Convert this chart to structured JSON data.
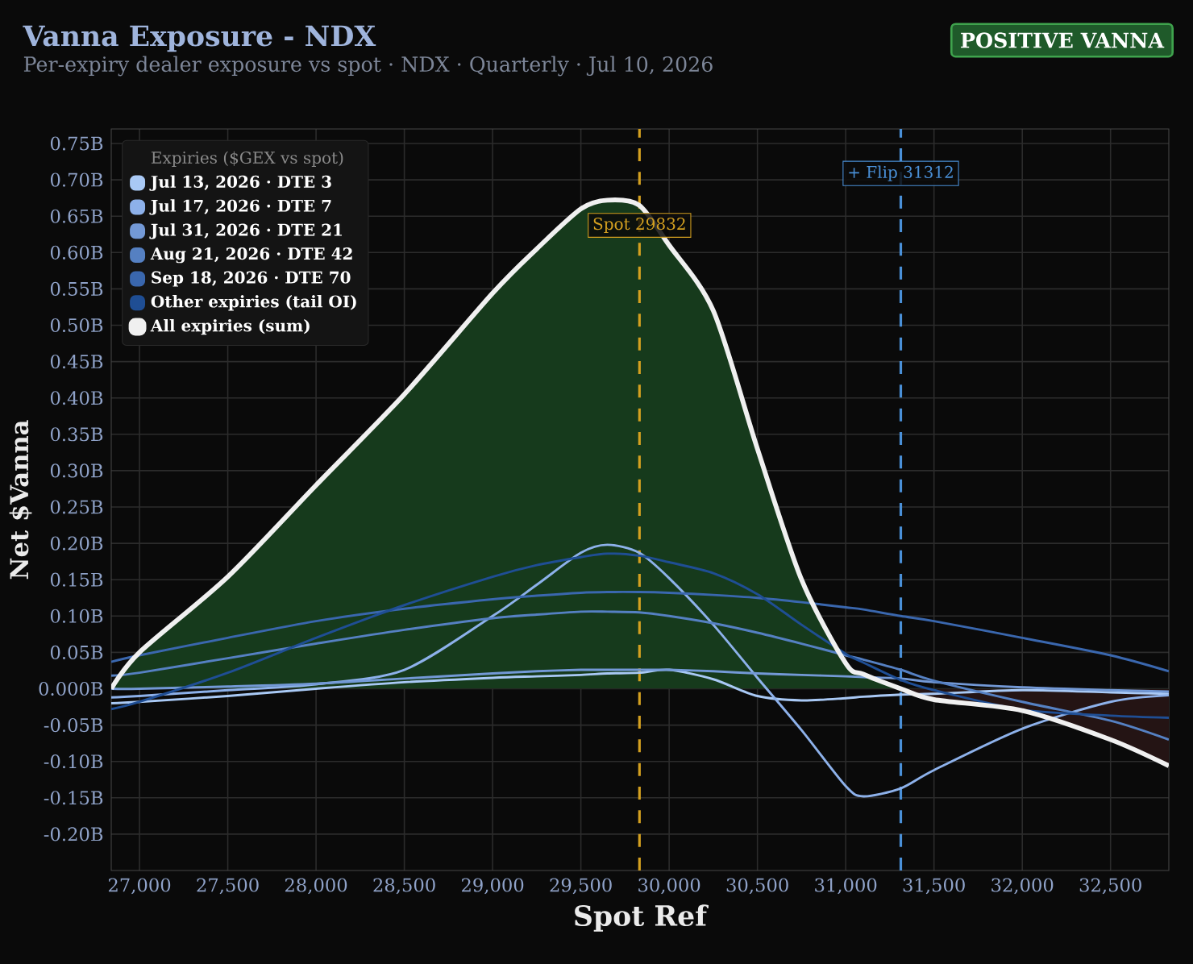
{
  "chart_data": {
    "type": "line",
    "title": "Vanna Exposure - NDX",
    "subtitle": "Per-expiry dealer exposure vs spot · NDX · Quarterly · Jul 10, 2026",
    "xlabel": "Spot Ref",
    "ylabel": "Net $Vanna",
    "legend_title": "Expiries ($GEX vs spot)",
    "annotations": [
      "POSITIVE VANNA"
    ],
    "x": [
      26840,
      27000,
      27500,
      28000,
      28500,
      29000,
      29250,
      29500,
      29650,
      29830,
      30000,
      30250,
      30500,
      30750,
      31000,
      31100,
      31312,
      31500,
      32000,
      32500,
      32830
    ],
    "series": [
      {
        "name": "Jul 13, 2026 · DTE 3",
        "color": "#a9c9f5",
        "values": [
          -0.02,
          -0.018,
          -0.01,
          0.0,
          0.009,
          0.015,
          0.017,
          0.019,
          0.021,
          0.022,
          0.026,
          0.013,
          -0.01,
          -0.016,
          -0.013,
          -0.011,
          -0.008,
          -0.007,
          -0.002,
          -0.005,
          -0.007
        ]
      },
      {
        "name": "Jul 17, 2026 · DTE 7",
        "color": "#8db1ea",
        "values": [
          -0.012,
          -0.01,
          -0.002,
          0.006,
          0.026,
          0.1,
          0.143,
          0.187,
          0.198,
          0.187,
          0.152,
          0.088,
          0.015,
          -0.057,
          -0.134,
          -0.148,
          -0.137,
          -0.112,
          -0.055,
          -0.018,
          -0.009
        ]
      },
      {
        "name": "Jul 31, 2026 · DTE 21",
        "color": "#7399d6",
        "values": [
          0.0,
          0.0,
          0.003,
          0.007,
          0.014,
          0.021,
          0.024,
          0.026,
          0.026,
          0.026,
          0.026,
          0.024,
          0.021,
          0.019,
          0.017,
          0.016,
          0.014,
          0.009,
          0.002,
          -0.002,
          -0.004
        ]
      },
      {
        "name": "Aug 21, 2026 · DTE 42",
        "color": "#5580c2",
        "values": [
          0.018,
          0.022,
          0.042,
          0.062,
          0.081,
          0.097,
          0.102,
          0.106,
          0.106,
          0.105,
          0.1,
          0.09,
          0.077,
          0.062,
          0.046,
          0.04,
          0.026,
          0.011,
          -0.018,
          -0.044,
          -0.07
        ]
      },
      {
        "name": "Sep 18, 2026 · DTE 70",
        "color": "#3a67ae",
        "values": [
          0.037,
          0.046,
          0.07,
          0.093,
          0.11,
          0.123,
          0.128,
          0.132,
          0.133,
          0.133,
          0.132,
          0.129,
          0.125,
          0.119,
          0.112,
          0.109,
          0.1,
          0.093,
          0.07,
          0.046,
          0.024
        ]
      },
      {
        "name": "Other expiries (tail OI)",
        "color": "#1f4e94",
        "values": [
          -0.028,
          -0.018,
          0.022,
          0.07,
          0.115,
          0.154,
          0.17,
          0.181,
          0.186,
          0.183,
          0.174,
          0.159,
          0.13,
          0.088,
          0.048,
          0.036,
          0.012,
          -0.002,
          -0.029,
          -0.037,
          -0.04
        ]
      },
      {
        "name": "All expiries (sum)",
        "type": "area",
        "color": "#f0f0f0",
        "values": [
          0.0,
          0.05,
          0.154,
          0.28,
          0.405,
          0.544,
          0.605,
          0.66,
          0.672,
          0.665,
          0.61,
          0.52,
          0.33,
          0.15,
          0.035,
          0.02,
          0.0,
          -0.015,
          -0.03,
          -0.07,
          -0.106
        ]
      }
    ],
    "xlim": [
      26840,
      32830
    ],
    "ylim": [
      -0.25,
      0.77
    ],
    "xticks": [
      {
        "value": 27000,
        "label": "27,000"
      },
      {
        "value": 27500,
        "label": "27,500"
      },
      {
        "value": 28000,
        "label": "28,000"
      },
      {
        "value": 28500,
        "label": "28,500"
      },
      {
        "value": 29000,
        "label": "29,000"
      },
      {
        "value": 29500,
        "label": "29,500"
      },
      {
        "value": 30000,
        "label": "30,000"
      },
      {
        "value": 30500,
        "label": "30,500"
      },
      {
        "value": 31000,
        "label": "31,000"
      },
      {
        "value": 31500,
        "label": "31,500"
      },
      {
        "value": 32000,
        "label": "32,000"
      },
      {
        "value": 32500,
        "label": "32,500"
      }
    ],
    "yticks": [
      {
        "value": -0.2,
        "label": "-0.20B"
      },
      {
        "value": -0.15,
        "label": "-0.15B"
      },
      {
        "value": -0.1,
        "label": "-0.10B"
      },
      {
        "value": -0.05,
        "label": "-0.05B"
      },
      {
        "value": 0,
        "label": "0.000B"
      },
      {
        "value": 0.05,
        "label": "0.05B"
      },
      {
        "value": 0.1,
        "label": "0.10B"
      },
      {
        "value": 0.15,
        "label": "0.15B"
      },
      {
        "value": 0.2,
        "label": "0.20B"
      },
      {
        "value": 0.25,
        "label": "0.25B"
      },
      {
        "value": 0.3,
        "label": "0.30B"
      },
      {
        "value": 0.35,
        "label": "0.35B"
      },
      {
        "value": 0.4,
        "label": "0.40B"
      },
      {
        "value": 0.45,
        "label": "0.45B"
      },
      {
        "value": 0.5,
        "label": "0.50B"
      },
      {
        "value": 0.55,
        "label": "0.55B"
      },
      {
        "value": 0.6,
        "label": "0.60B"
      },
      {
        "value": 0.65,
        "label": "0.65B"
      },
      {
        "value": 0.7,
        "label": "0.70B"
      },
      {
        "value": 0.75,
        "label": "0.75B"
      }
    ],
    "grid": true,
    "legend": "top left",
    "ref_lines": [
      {
        "axis": "x",
        "value": 29832,
        "label": "Spot 29832",
        "color": "#d4a020",
        "line_style": "dashed"
      },
      {
        "axis": "x",
        "value": 31312,
        "label": "+ Flip 31312",
        "color": "#4a90d8",
        "line_style": "dashed"
      }
    ]
  }
}
